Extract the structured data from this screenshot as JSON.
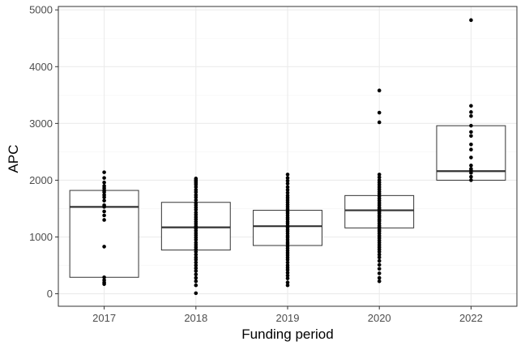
{
  "chart_data": {
    "type": "boxplot",
    "title": "",
    "xlabel": "Funding period",
    "ylabel": "APC",
    "categories": [
      "2017",
      "2018",
      "2019",
      "2020",
      "2022"
    ],
    "ylim": [
      -220,
      5060
    ],
    "yticks": [
      0,
      1000,
      2000,
      3000,
      4000,
      5000
    ],
    "grid": true,
    "colors": {
      "box_stroke": "#333333",
      "median": "#333333",
      "point": "#000000",
      "grid_major": "#ebebeb",
      "grid_minor": "#f5f5f5",
      "panel_border": "#333333",
      "tick_label": "#4d4d4d"
    },
    "boxes": [
      {
        "category": "2017",
        "q1": 290,
        "median": 1530,
        "q3": 1820
      },
      {
        "category": "2018",
        "q1": 770,
        "median": 1170,
        "q3": 1610
      },
      {
        "category": "2019",
        "q1": 850,
        "median": 1190,
        "q3": 1470
      },
      {
        "category": "2020",
        "q1": 1160,
        "median": 1470,
        "q3": 1730
      },
      {
        "category": "2022",
        "q1": 2000,
        "median": 2160,
        "q3": 2960
      }
    ],
    "points": [
      {
        "category": "2017",
        "values": [
          2140,
          2040,
          1960,
          1900,
          1860,
          1820,
          1790,
          1740,
          1700,
          1640,
          1560,
          1530,
          1450,
          1380,
          1300,
          830,
          290,
          240,
          200,
          170
        ]
      },
      {
        "category": "2018",
        "values": [
          2030,
          2000,
          1980,
          1950,
          1920,
          1880,
          1830,
          1790,
          1740,
          1700,
          1650,
          1600,
          1560,
          1520,
          1480,
          1430,
          1390,
          1350,
          1310,
          1270,
          1230,
          1190,
          1150,
          1110,
          1070,
          1030,
          990,
          950,
          900,
          860,
          820,
          780,
          740,
          690,
          640,
          600,
          550,
          500,
          450,
          400,
          340,
          280,
          220,
          150,
          10
        ]
      },
      {
        "category": "2019",
        "values": [
          2100,
          2040,
          1990,
          1940,
          1880,
          1830,
          1780,
          1730,
          1690,
          1650,
          1610,
          1570,
          1530,
          1490,
          1450,
          1420,
          1380,
          1340,
          1310,
          1270,
          1240,
          1200,
          1170,
          1130,
          1100,
          1060,
          1020,
          990,
          950,
          910,
          880,
          840,
          800,
          760,
          720,
          680,
          640,
          600,
          550,
          500,
          460,
          420,
          370,
          320,
          270,
          200,
          150
        ]
      },
      {
        "category": "2020",
        "values": [
          3580,
          3190,
          3020,
          2100,
          2050,
          2000,
          1960,
          1920,
          1880,
          1840,
          1800,
          1760,
          1720,
          1680,
          1640,
          1600,
          1560,
          1520,
          1490,
          1450,
          1420,
          1380,
          1350,
          1310,
          1280,
          1240,
          1200,
          1170,
          1130,
          1100,
          1060,
          1020,
          980,
          940,
          900,
          860,
          820,
          780,
          740,
          690,
          640,
          580,
          510,
          440,
          360,
          280,
          220
        ]
      },
      {
        "category": "2022",
        "values": [
          4820,
          3310,
          3200,
          3130,
          2960,
          2850,
          2780,
          2630,
          2540,
          2400,
          2260,
          2200,
          2170,
          2130,
          2060,
          2000
        ]
      }
    ]
  }
}
